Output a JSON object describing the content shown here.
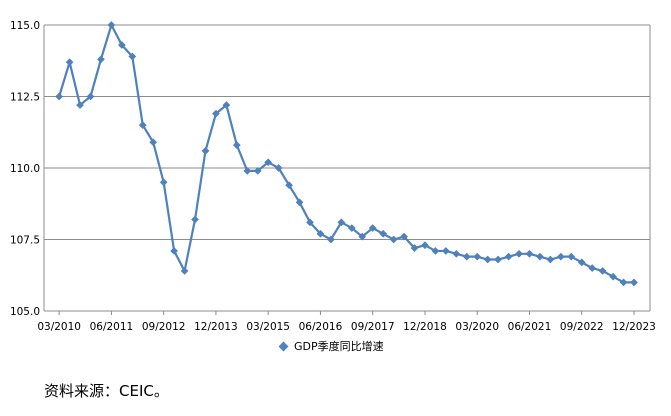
{
  "chart_data": {
    "type": "line",
    "title": "",
    "xlabel": "",
    "ylabel": "",
    "ylim": [
      105.0,
      115.0
    ],
    "y_ticks": [
      "105.0",
      "107.5",
      "110.0",
      "112.5",
      "115.0"
    ],
    "x_tick_labels": [
      "03/2010",
      "06/2011",
      "09/2012",
      "12/2013",
      "03/2015",
      "06/2016",
      "09/2017",
      "12/2018",
      "03/2020",
      "06/2021",
      "09/2022",
      "12/2023"
    ],
    "grid": true,
    "legend_position": "bottom",
    "series": [
      {
        "name": "GDP季度同比增速",
        "color": "#4f81bd",
        "values": [
          112.5,
          113.7,
          112.2,
          112.5,
          113.8,
          115.0,
          114.3,
          113.9,
          111.5,
          110.9,
          109.5,
          107.1,
          106.4,
          108.2,
          110.6,
          111.9,
          112.2,
          110.8,
          109.9,
          109.9,
          110.2,
          110.0,
          109.4,
          108.8,
          108.1,
          107.7,
          107.5,
          108.1,
          107.9,
          107.6,
          107.9,
          107.7,
          107.5,
          107.6,
          107.2,
          107.3,
          107.1,
          107.1,
          107.0,
          106.9,
          106.9,
          106.8,
          106.8,
          106.9,
          107.0,
          107.0,
          106.9,
          106.8,
          106.9,
          106.9,
          106.7,
          106.5,
          106.4,
          106.2,
          106.0,
          106.0
        ]
      }
    ]
  },
  "legend": {
    "label": "GDP季度同比增速"
  },
  "source": {
    "text": "资料来源：CEIC。"
  }
}
